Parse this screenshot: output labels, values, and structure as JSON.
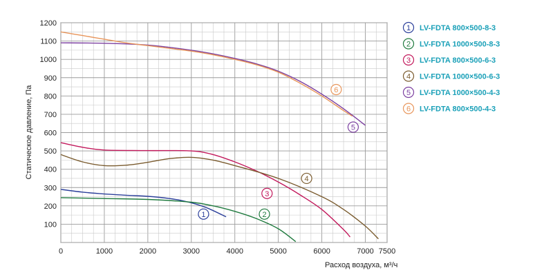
{
  "chart_data": {
    "type": "line",
    "xlabel": "Расход воздуха, м³/ч",
    "ylabel": "Статическое давление, Па",
    "xlim": [
      0,
      7500
    ],
    "ylim": [
      0,
      1200
    ],
    "x_ticks": [
      0,
      1000,
      2000,
      3000,
      4000,
      5000,
      6000,
      7000,
      7500
    ],
    "y_ticks": [
      100,
      200,
      300,
      400,
      500,
      600,
      700,
      800,
      900,
      1000,
      1100,
      1200
    ],
    "grid": true,
    "legend_position": "right",
    "series": [
      {
        "name": "LV-FDTA 800×500-8-3",
        "marker": "1",
        "color": "#2b3f9a",
        "x": [
          0,
          500,
          1000,
          1500,
          2000,
          2500,
          2800,
          3100,
          3400,
          3800
        ],
        "y": [
          290,
          275,
          265,
          258,
          252,
          240,
          228,
          210,
          185,
          140
        ]
      },
      {
        "name": "LV-FDTA 1000×500-8-3",
        "marker": "2",
        "color": "#1f7a3e",
        "x": [
          0,
          1000,
          2000,
          3000,
          3500,
          4000,
          4500,
          5000,
          5400
        ],
        "y": [
          245,
          240,
          235,
          220,
          200,
          170,
          130,
          75,
          5
        ]
      },
      {
        "name": "LV-FDTA 800×500-6-3",
        "marker": "3",
        "color": "#c2185b",
        "x": [
          0,
          500,
          1000,
          2000,
          3000,
          3500,
          4000,
          4500,
          5000,
          5500,
          6000,
          6500,
          6650
        ],
        "y": [
          545,
          520,
          505,
          502,
          500,
          480,
          440,
          390,
          330,
          260,
          180,
          70,
          30
        ]
      },
      {
        "name": "LV-FDTA 1000×500-6-3",
        "marker": "4",
        "color": "#7a5b2e",
        "x": [
          0,
          500,
          1000,
          1500,
          2000,
          2500,
          3000,
          3500,
          4000,
          5000,
          6000,
          6500,
          7000,
          7300
        ],
        "y": [
          480,
          440,
          420,
          422,
          438,
          458,
          465,
          450,
          420,
          350,
          250,
          180,
          90,
          20
        ]
      },
      {
        "name": "LV-FDTA 1000×500-4-3",
        "marker": "5",
        "color": "#7b3fa0",
        "x": [
          0,
          1000,
          2000,
          3000,
          3500,
          4000,
          4500,
          5000,
          5500,
          6000,
          6500,
          7000
        ],
        "y": [
          1090,
          1088,
          1078,
          1050,
          1030,
          1005,
          975,
          935,
          880,
          810,
          730,
          640
        ]
      },
      {
        "name": "LV-FDTA 800×500-4-3",
        "marker": "6",
        "color": "#e8955a",
        "x": [
          0,
          500,
          1000,
          1500,
          2000,
          2500,
          3000,
          3500,
          4000,
          4500,
          5000,
          5500,
          6000,
          6500,
          6700
        ],
        "y": [
          1150,
          1130,
          1110,
          1090,
          1075,
          1060,
          1045,
          1025,
          1000,
          970,
          930,
          870,
          800,
          720,
          690
        ]
      }
    ],
    "curve_markers": [
      {
        "marker": "1",
        "color": "#2b3f9a",
        "x": 3280,
        "y": 155
      },
      {
        "marker": "2",
        "color": "#1f7a3e",
        "x": 4680,
        "y": 155
      },
      {
        "marker": "3",
        "color": "#c2185b",
        "x": 4740,
        "y": 268
      },
      {
        "marker": "4",
        "color": "#7a5b2e",
        "x": 5650,
        "y": 350
      },
      {
        "marker": "5",
        "color": "#7b3fa0",
        "x": 6720,
        "y": 630
      },
      {
        "marker": "6",
        "color": "#e8955a",
        "x": 6330,
        "y": 835
      }
    ],
    "legend_text_color": "#1aa0b8"
  }
}
